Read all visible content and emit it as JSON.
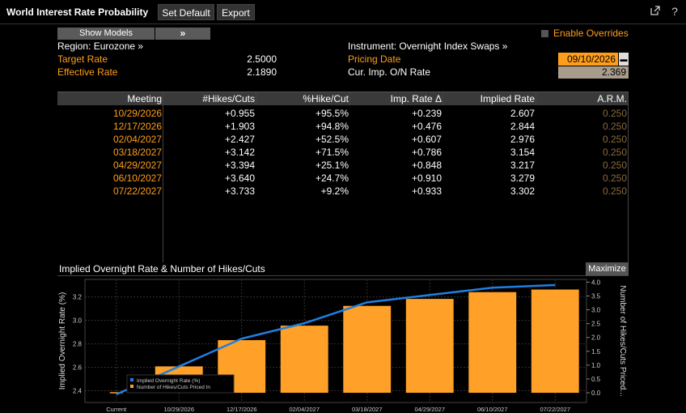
{
  "titlebar": {
    "title": "World Interest Rate Probability",
    "set_default": "Set Default",
    "export": "Export",
    "popout_icon": "popout-icon",
    "help_icon": "help-icon",
    "help_label": "?"
  },
  "controls": {
    "show_models": "Show Models",
    "models_arrow": "»",
    "enable_overrides": "Enable Overrides",
    "region": "Region: Eurozone »",
    "instrument": "Instrument: Overnight Index Swaps »",
    "target_rate_label": "Target Rate",
    "target_rate_value": "2.5000",
    "effective_rate_label": "Effective Rate",
    "effective_rate_value": "2.1890",
    "pricing_date_label": "Pricing Date",
    "pricing_date_value": "09/10/2026",
    "cur_on_rate_label": "Cur. Imp. O/N Rate",
    "cur_on_rate_value": "2.369"
  },
  "table": {
    "headers": [
      "Meeting",
      "#Hikes/Cuts",
      "%Hike/Cut",
      "Imp. Rate Δ",
      "Implied Rate",
      "A.R.M."
    ],
    "rows": [
      {
        "meeting": "10/29/2026",
        "hikes": "+0.955",
        "pct": "+95.5%",
        "delta": "+0.239",
        "implied": "2.607",
        "arm": "0.250"
      },
      {
        "meeting": "12/17/2026",
        "hikes": "+1.903",
        "pct": "+94.8%",
        "delta": "+0.476",
        "implied": "2.844",
        "arm": "0.250"
      },
      {
        "meeting": "02/04/2027",
        "hikes": "+2.427",
        "pct": "+52.5%",
        "delta": "+0.607",
        "implied": "2.976",
        "arm": "0.250"
      },
      {
        "meeting": "03/18/2027",
        "hikes": "+3.142",
        "pct": "+71.5%",
        "delta": "+0.786",
        "implied": "3.154",
        "arm": "0.250"
      },
      {
        "meeting": "04/29/2027",
        "hikes": "+3.394",
        "pct": "+25.1%",
        "delta": "+0.848",
        "implied": "3.217",
        "arm": "0.250"
      },
      {
        "meeting": "06/10/2027",
        "hikes": "+3.640",
        "pct": "+24.7%",
        "delta": "+0.910",
        "implied": "3.279",
        "arm": "0.250"
      },
      {
        "meeting": "07/22/2027",
        "hikes": "+3.733",
        "pct": "+9.2%",
        "delta": "+0.933",
        "implied": "3.302",
        "arm": "0.250"
      }
    ]
  },
  "chart_header": {
    "title": "Implied Overnight Rate & Number of Hikes/Cuts",
    "maximize": "Maximize"
  },
  "chart_data": {
    "type": "bar",
    "categories": [
      "Current",
      "10/29/2026",
      "12/17/2026",
      "02/04/2027",
      "03/18/2027",
      "04/29/2027",
      "06/10/2027",
      "07/22/2027"
    ],
    "series": [
      {
        "name": "Implied Overnight Rate (%)",
        "type": "line",
        "axis": "left",
        "color": "#1f7fe0",
        "values": [
          2.369,
          2.607,
          2.844,
          2.976,
          3.154,
          3.217,
          3.279,
          3.302
        ]
      },
      {
        "name": "Number of Hikes/Cuts Priced In",
        "type": "bar",
        "axis": "right",
        "color": "#ffa028",
        "values": [
          0,
          0.955,
          1.903,
          2.427,
          3.142,
          3.394,
          3.64,
          3.733
        ]
      }
    ],
    "ylabel": "Implied Overnight Rate (%)",
    "y2label": "Number of Hikes/Cuts Priced...",
    "ylim": [
      2.3,
      3.35
    ],
    "y2lim": [
      -0.35,
      4.1
    ],
    "yticks": [
      "2.4",
      "2.6",
      "2.8",
      "3.0",
      "3.2"
    ],
    "y2ticks": [
      "0.0",
      "0.5",
      "1.0",
      "1.5",
      "2.0",
      "2.5",
      "3.0",
      "3.5",
      "4.0"
    ],
    "legend_position": "bottom-left",
    "grid": true
  }
}
